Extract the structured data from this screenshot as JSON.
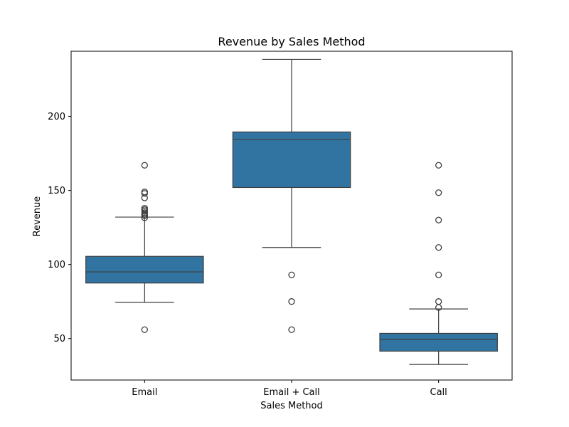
{
  "chart_data": {
    "type": "box",
    "title": "Revenue by Sales Method",
    "xlabel": "Sales Method",
    "ylabel": "Revenue",
    "ylim": [
      22,
      244
    ],
    "yticks": [
      50,
      100,
      150,
      200
    ],
    "categories": [
      "Email",
      "Email + Call",
      "Call"
    ],
    "box_color": "#3274a1",
    "line_color": "#3d3d3d",
    "boxes": [
      {
        "category": "Email",
        "whisker_low": 74.5,
        "q1": 87.5,
        "median": 95.0,
        "q3": 105.5,
        "whisker_high": 132.0,
        "outliers": [
          56,
          131.5,
          133,
          134,
          135,
          136,
          137,
          138,
          145,
          148,
          149,
          167
        ]
      },
      {
        "category": "Email + Call",
        "whisker_low": 111.5,
        "q1": 152.0,
        "median": 184.5,
        "q3": 189.5,
        "whisker_high": 238.5,
        "outliers": [
          56,
          75,
          93
        ]
      },
      {
        "category": "Call",
        "whisker_low": 32.5,
        "q1": 41.5,
        "median": 49.5,
        "q3": 53.5,
        "whisker_high": 70.0,
        "outliers": [
          71,
          75,
          93,
          111.5,
          130,
          148.5,
          167
        ]
      }
    ]
  }
}
